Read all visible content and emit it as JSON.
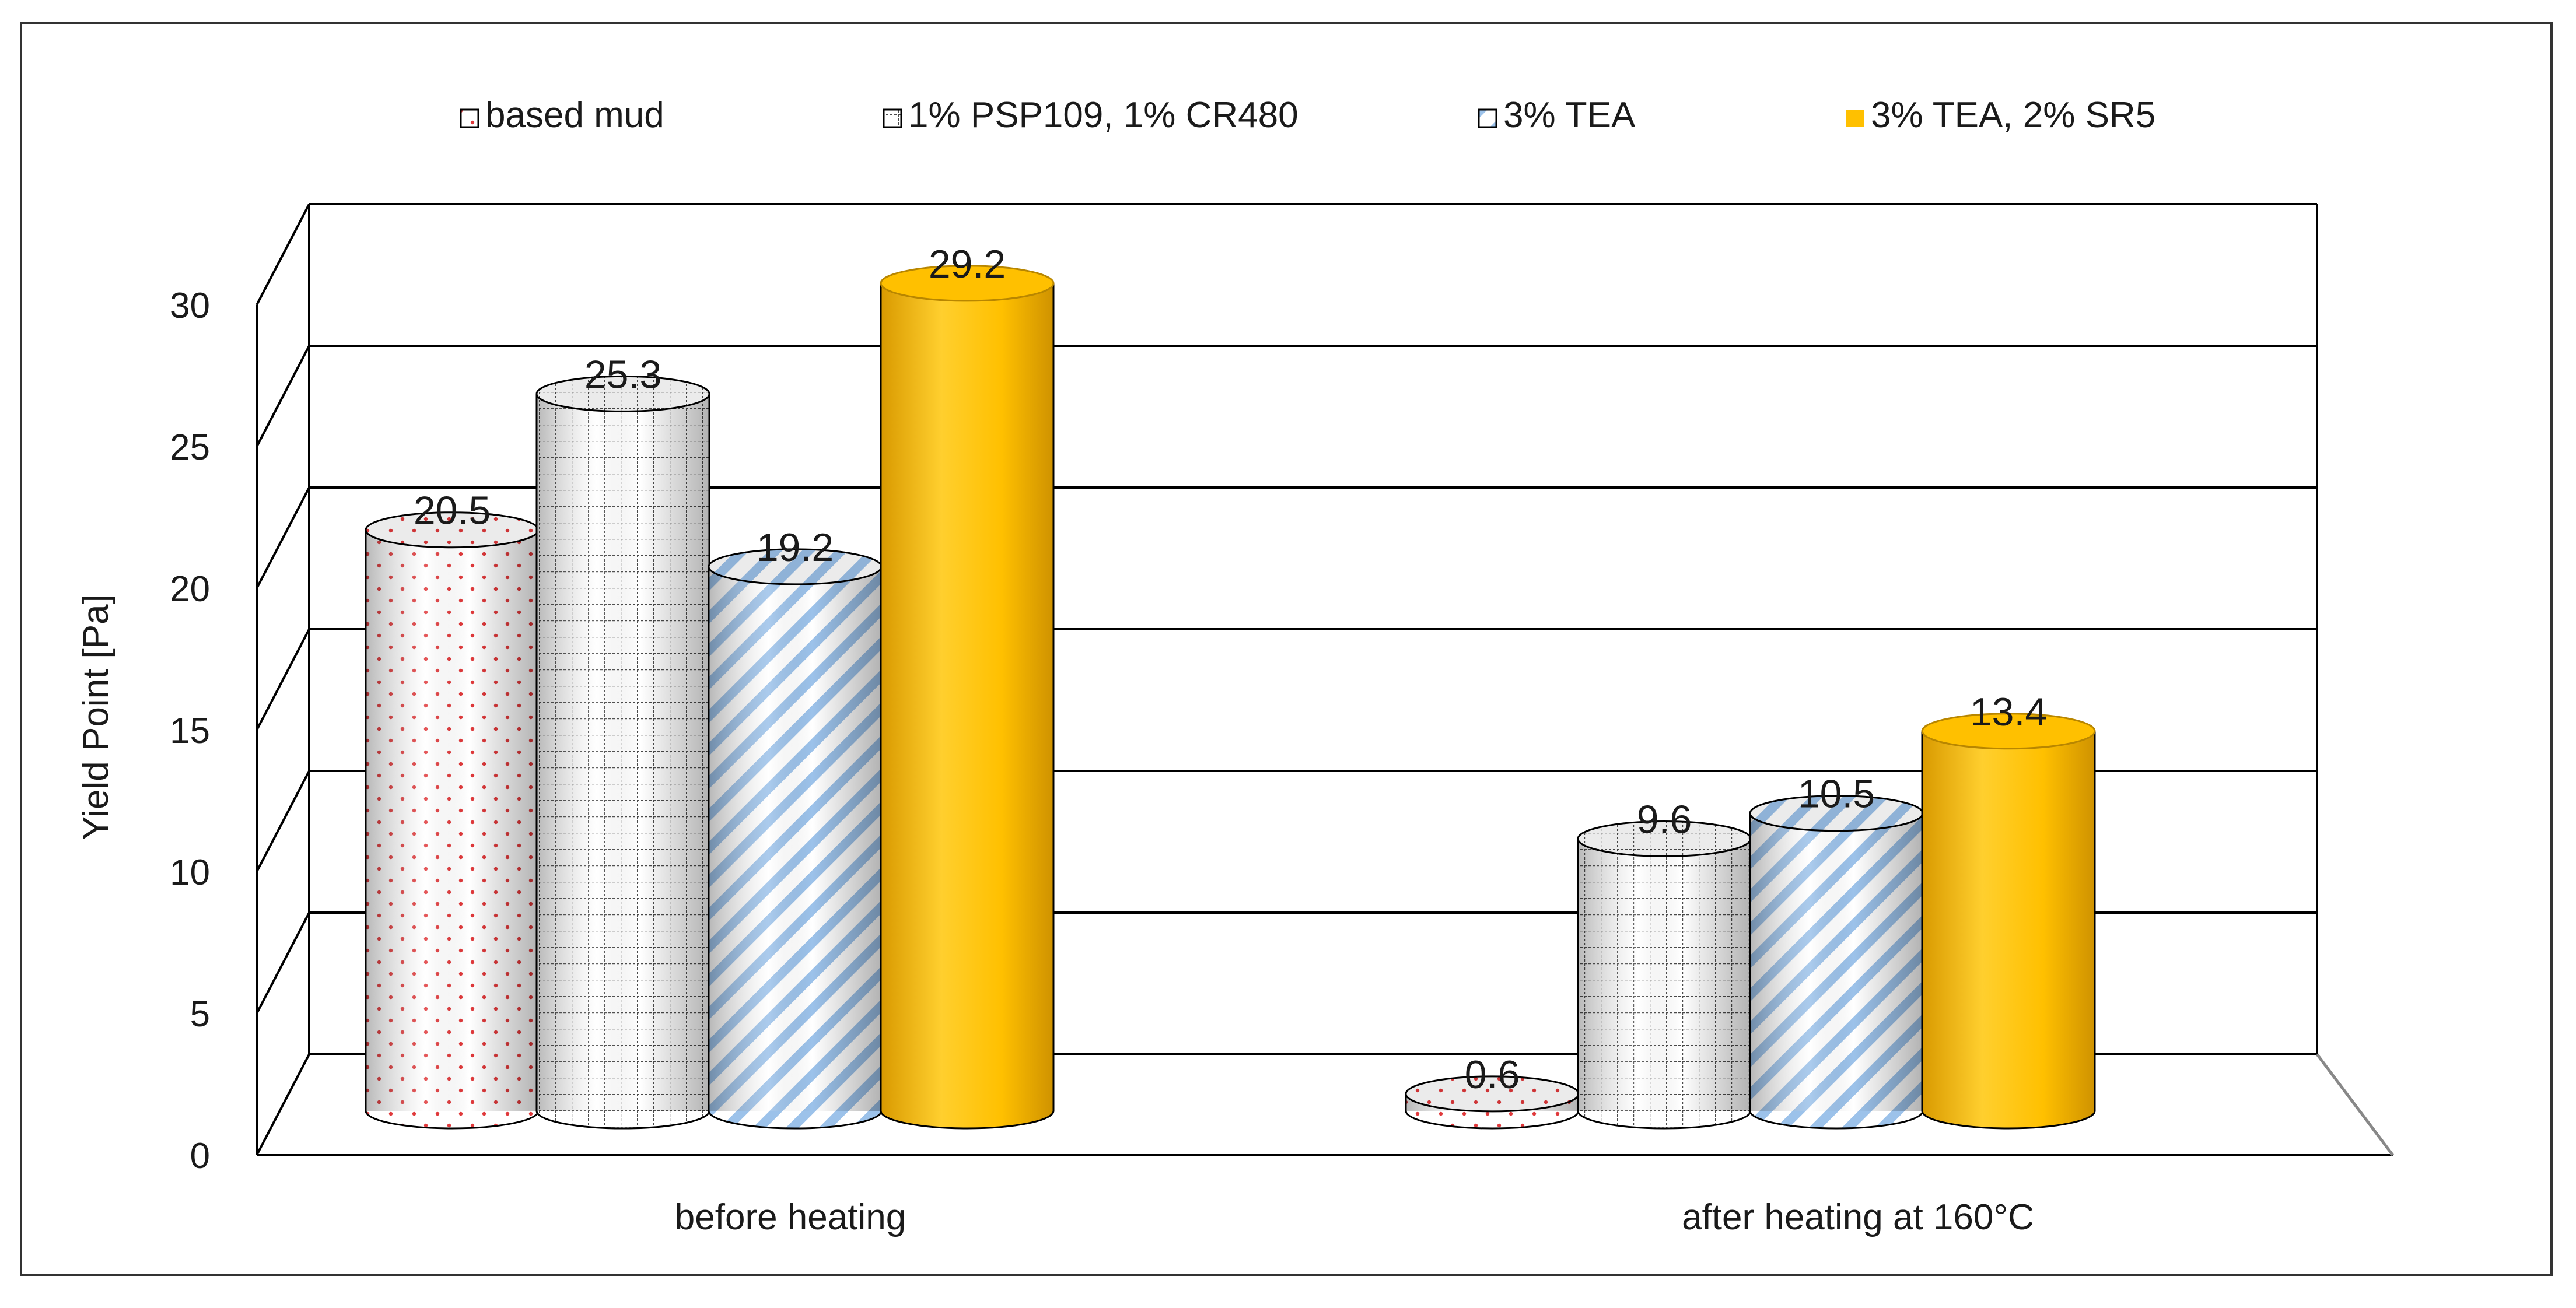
{
  "chart_data": {
    "type": "bar",
    "style": "3d-cylinder",
    "categories": [
      "before heating",
      "after heating  at 160°C"
    ],
    "series": [
      {
        "name": "based mud",
        "values": [
          20.5,
          0.6
        ],
        "labels": [
          "20.5",
          "0.6"
        ],
        "pattern": "red-dots",
        "color": "#e0393b"
      },
      {
        "name": "1% PSP109, 1% CR480",
        "values": [
          25.3,
          9.6
        ],
        "labels": [
          "25.3",
          "9.6"
        ],
        "pattern": "grid",
        "color": "#555555"
      },
      {
        "name": "3% TEA",
        "values": [
          19.2,
          10.5
        ],
        "labels": [
          "19.2",
          "10.5"
        ],
        "pattern": "blue-diagonal",
        "color": "#7fb1e3"
      },
      {
        "name": "3% TEA, 2% SR5",
        "values": [
          29.2,
          13.4
        ],
        "labels": [
          "29.2",
          "13.4"
        ],
        "pattern": "solid",
        "color": "#ffc000"
      }
    ],
    "title": "",
    "xlabel": "",
    "ylabel": "Yield Point [Pa]",
    "ylim": [
      0,
      30
    ],
    "yticks": [
      "0",
      "5",
      "10",
      "15",
      "20",
      "25",
      "30"
    ],
    "grid": true,
    "legend_position": "top"
  }
}
